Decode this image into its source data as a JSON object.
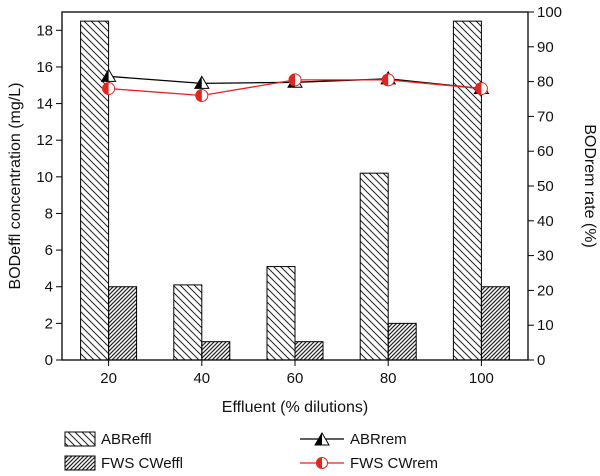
{
  "chart_data": {
    "type": "bar",
    "xlabel": "Effluent (% dilutions)",
    "ylabel_left": "BODeffl concentration (mg/L)",
    "ylabel_right": "BODrem rate (%)",
    "categories": [
      "20",
      "40",
      "60",
      "80",
      "100"
    ],
    "ylim_left": [
      0,
      19
    ],
    "ylim_right": [
      0,
      100
    ],
    "yticks_left": [
      "0",
      "2",
      "4",
      "6",
      "8",
      "10",
      "12",
      "14",
      "16",
      "18"
    ],
    "yticks_right": [
      "0",
      "10",
      "20",
      "30",
      "40",
      "50",
      "60",
      "70",
      "80",
      "90",
      "100"
    ],
    "bar_series": [
      {
        "name": "ABReffl",
        "hatch": "back-diagonal",
        "values": [
          18.5,
          4.1,
          5.1,
          10.2,
          18.5
        ]
      },
      {
        "name": "FWS CWeffl",
        "hatch": "dense-diagonal",
        "values": [
          4.0,
          1.0,
          1.0,
          2.0,
          4.0
        ]
      }
    ],
    "line_series": [
      {
        "name": "ABRrem",
        "marker": "half-filled-triangle",
        "color": "#000000",
        "values": [
          81.5,
          79.5,
          79.8,
          80.8,
          78.0
        ]
      },
      {
        "name": "FWS CWrem",
        "marker": "half-filled-circle",
        "color": "#e8231d",
        "values": [
          78.0,
          76.0,
          80.5,
          80.5,
          78.0
        ]
      }
    ]
  }
}
